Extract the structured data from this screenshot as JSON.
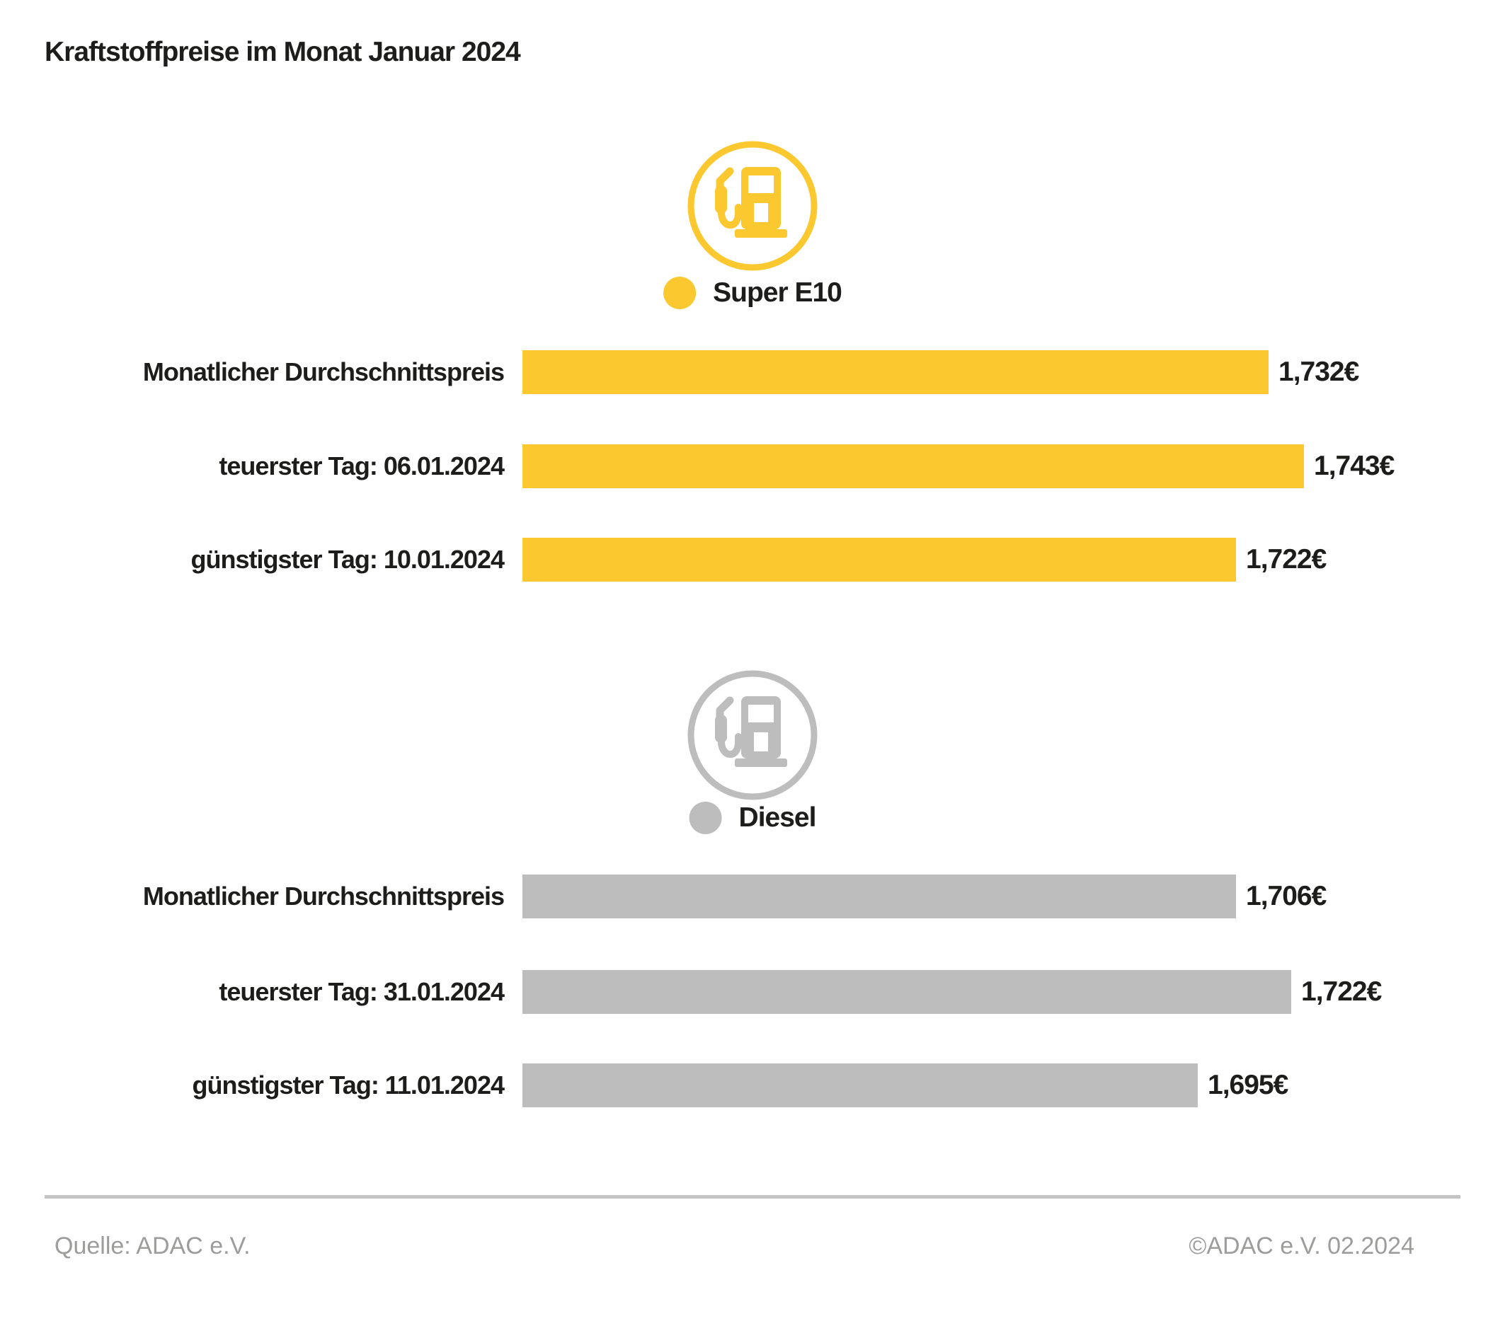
{
  "page": {
    "title": "Kraftstoffpreise im Monat Januar 2024",
    "background": "#ffffff"
  },
  "colors": {
    "super_e10_yellow": "#FCC82F",
    "diesel_gray": "#BDBDBD",
    "text_dark": "#1D1D1B",
    "footer_text_gray": "#9C9C9B",
    "divider_gray": "#C4C4C4"
  },
  "chart_data": [
    {
      "type": "bar",
      "title": "Super E10",
      "orientation": "horizontal",
      "color": "#FCC82F",
      "icon": "fuel-pump-icon",
      "legend_position": "top-center",
      "grid": false,
      "scale": {
        "min": 1.5,
        "max": 1.751
      },
      "categories": [
        "Monatlicher Durchschnittspreis",
        "teuerster Tag: 06.01.2024",
        "günstigster Tag: 10.01.2024"
      ],
      "values": [
        1.732,
        1.743,
        1.722
      ],
      "value_labels": [
        "1,732€",
        "1,743€",
        "1,722€"
      ]
    },
    {
      "type": "bar",
      "title": "Diesel",
      "orientation": "horizontal",
      "color": "#BDBDBD",
      "icon": "fuel-pump-icon",
      "legend_position": "top-center",
      "grid": false,
      "scale": {
        "min": 1.5,
        "max": 1.733
      },
      "categories": [
        "Monatlicher Durchschnittspreis",
        "teuerster Tag: 31.01.2024",
        "günstigster Tag: 11.01.2024"
      ],
      "values": [
        1.706,
        1.722,
        1.695
      ],
      "value_labels": [
        "1,706€",
        "1,722€",
        "1,695€"
      ]
    }
  ],
  "footer": {
    "source": "Quelle: ADAC e.V.",
    "copyright": "©ADAC e.V. 02.2024"
  }
}
